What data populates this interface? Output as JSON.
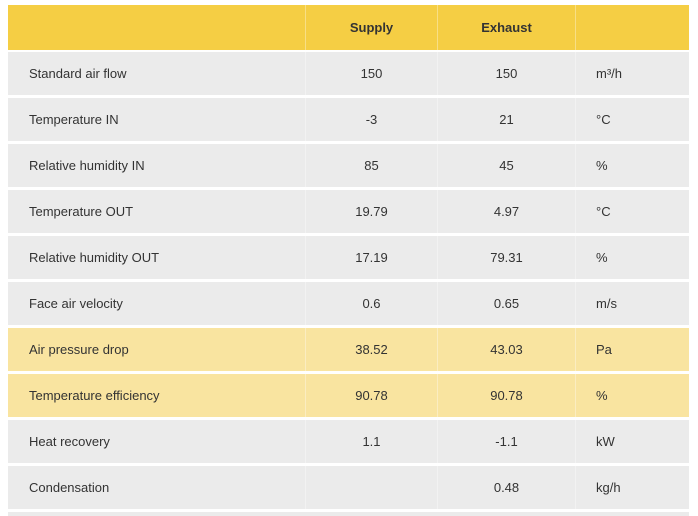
{
  "header": {
    "label": "",
    "supply": "Supply",
    "exhaust": "Exhaust",
    "unit": ""
  },
  "colors": {
    "header": "#f5ce44",
    "highlight": "#f9e4a0",
    "row": "#ebebeb"
  },
  "rows": [
    {
      "label": "Standard air flow",
      "supply": "150",
      "exhaust": "150",
      "unit": "m³/h",
      "highlight": false
    },
    {
      "label": "Temperature IN",
      "supply": "-3",
      "exhaust": "21",
      "unit": "°C",
      "highlight": false
    },
    {
      "label": "Relative humidity IN",
      "supply": "85",
      "exhaust": "45",
      "unit": "%",
      "highlight": false
    },
    {
      "label": "Temperature OUT",
      "supply": "19.79",
      "exhaust": "4.97",
      "unit": "°C",
      "highlight": false
    },
    {
      "label": "Relative humidity OUT",
      "supply": "17.19",
      "exhaust": "79.31",
      "unit": "%",
      "highlight": false
    },
    {
      "label": "Face air velocity",
      "supply": "0.6",
      "exhaust": "0.65",
      "unit": "m/s",
      "highlight": false
    },
    {
      "label": "Air pressure drop",
      "supply": "38.52",
      "exhaust": "43.03",
      "unit": "Pa",
      "highlight": true
    },
    {
      "label": "Temperature efficiency",
      "supply": "90.78",
      "exhaust": "90.78",
      "unit": "%",
      "highlight": true
    },
    {
      "label": "Heat recovery",
      "supply": "1.1",
      "exhaust": "-1.1",
      "unit": "kW",
      "highlight": false
    },
    {
      "label": "Condensation",
      "supply": "",
      "exhaust": "0.48",
      "unit": "kg/h",
      "highlight": false
    }
  ]
}
